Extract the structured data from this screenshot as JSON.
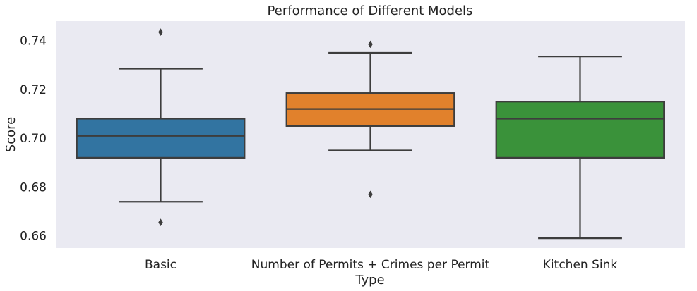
{
  "chart_data": {
    "type": "box",
    "title": "Performance of Different Models",
    "xlabel": "Type",
    "ylabel": "Score",
    "ylim": [
      0.655,
      0.748
    ],
    "yticks": [
      0.66,
      0.68,
      0.7,
      0.72,
      0.74
    ],
    "ytick_labels": [
      "0.66",
      "0.68",
      "0.70",
      "0.72",
      "0.74"
    ],
    "grid": false,
    "background": "#eaeaf2",
    "categories": [
      "Basic",
      "Number of Permits + Crimes per Permit",
      "Kitchen Sink"
    ],
    "boxes": [
      {
        "category": "Basic",
        "color": "#3274a1",
        "whisker_low": 0.674,
        "q1": 0.692,
        "median": 0.701,
        "q3": 0.708,
        "whisker_high": 0.7285,
        "outliers": [
          0.7435,
          0.6655
        ]
      },
      {
        "category": "Number of Permits + Crimes per Permit",
        "color": "#e1812c",
        "whisker_low": 0.695,
        "q1": 0.705,
        "median": 0.712,
        "q3": 0.7185,
        "whisker_high": 0.735,
        "outliers": [
          0.7385,
          0.677
        ]
      },
      {
        "category": "Kitchen Sink",
        "color": "#3a923a",
        "whisker_low": 0.659,
        "q1": 0.692,
        "median": 0.708,
        "q3": 0.715,
        "whisker_high": 0.7335,
        "outliers": []
      }
    ]
  }
}
